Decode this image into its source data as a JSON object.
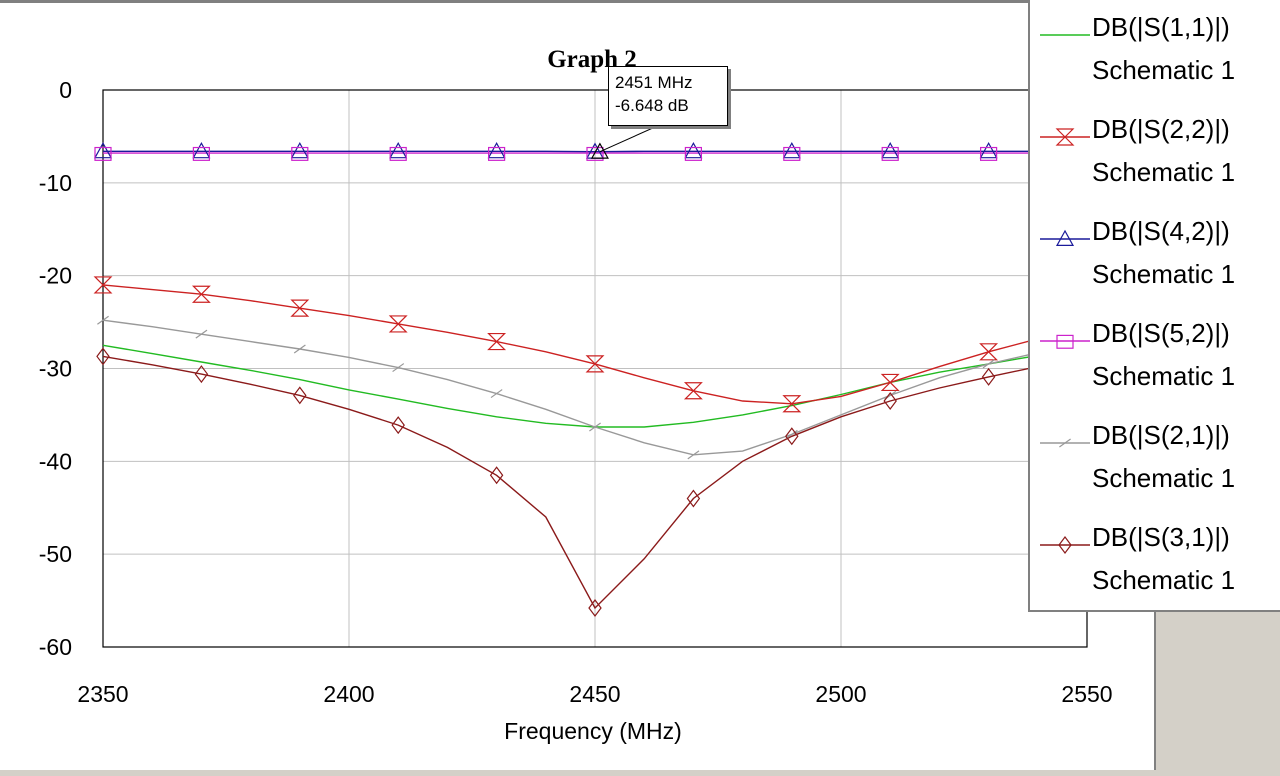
{
  "chart_data": {
    "type": "line",
    "title": "Graph 2",
    "xlabel": "Frequency (MHz)",
    "ylabel": "",
    "xlim": [
      2350,
      2550
    ],
    "ylim": [
      -60,
      0
    ],
    "x_ticks": [
      "2350",
      "2400",
      "2450",
      "2500",
      "2550"
    ],
    "y_ticks": [
      "0",
      "-10",
      "-20",
      "-30",
      "-40",
      "-50",
      "-60"
    ],
    "grid": true,
    "legend_position": "right",
    "x": [
      2350,
      2360,
      2370,
      2380,
      2390,
      2400,
      2410,
      2420,
      2430,
      2440,
      2450,
      2460,
      2470,
      2480,
      2490,
      2500,
      2510,
      2520,
      2530,
      2540,
      2550
    ],
    "series": [
      {
        "name": "DB(|S(1,1)|)",
        "name2": "Schematic 1",
        "color": "#22bb22",
        "marker": "none",
        "values": [
          -27.5,
          -28.4,
          -29.3,
          -30.2,
          -31.2,
          -32.3,
          -33.3,
          -34.3,
          -35.2,
          -35.9,
          -36.3,
          -36.3,
          -35.8,
          -35.0,
          -34.0,
          -32.8,
          -31.5,
          -30.4,
          -29.5,
          -28.6,
          -27.9
        ]
      },
      {
        "name": "DB(|S(2,2)|)",
        "name2": "Schematic 1",
        "color": "#cc2222",
        "marker": "hourglass",
        "values": [
          -21.0,
          -21.5,
          -22.0,
          -22.7,
          -23.5,
          -24.3,
          -25.2,
          -26.1,
          -27.1,
          -28.2,
          -29.5,
          -31.0,
          -32.4,
          -33.5,
          -33.8,
          -33.0,
          -31.5,
          -29.8,
          -28.2,
          -26.8,
          -25.8
        ]
      },
      {
        "name": "DB(|S(4,2)|)",
        "name2": "Schematic 1",
        "color": "#1a1a9a",
        "marker": "triangle",
        "values": [
          -6.6,
          -6.6,
          -6.6,
          -6.6,
          -6.6,
          -6.6,
          -6.6,
          -6.6,
          -6.6,
          -6.6,
          -6.648,
          -6.6,
          -6.6,
          -6.6,
          -6.6,
          -6.6,
          -6.6,
          -6.6,
          -6.6,
          -6.6,
          -6.6
        ]
      },
      {
        "name": "DB(|S(5,2)|)",
        "name2": "Schematic 1",
        "color": "#cc22cc",
        "marker": "square",
        "values": [
          -6.8,
          -6.8,
          -6.8,
          -6.8,
          -6.8,
          -6.8,
          -6.8,
          -6.8,
          -6.8,
          -6.8,
          -6.8,
          -6.8,
          -6.8,
          -6.8,
          -6.8,
          -6.8,
          -6.8,
          -6.8,
          -6.8,
          -6.8,
          -6.8
        ]
      },
      {
        "name": "DB(|S(2,1)|)",
        "name2": "Schematic 1",
        "color": "#999999",
        "marker": "slash",
        "values": [
          -24.8,
          -25.5,
          -26.3,
          -27.1,
          -27.9,
          -28.8,
          -29.9,
          -31.2,
          -32.7,
          -34.4,
          -36.3,
          -38.0,
          -39.3,
          -38.9,
          -37.1,
          -35.0,
          -32.9,
          -31.0,
          -29.5,
          -28.3,
          -27.4
        ]
      },
      {
        "name": "DB(|S(3,1)|)",
        "name2": "Schematic 1",
        "color": "#8b1a1a",
        "marker": "diamond",
        "values": [
          -28.7,
          -29.6,
          -30.6,
          -31.7,
          -32.9,
          -34.4,
          -36.1,
          -38.5,
          -41.5,
          -46.0,
          -55.8,
          -50.5,
          -44.0,
          -40.0,
          -37.3,
          -35.2,
          -33.5,
          -32.1,
          -30.9,
          -29.8,
          -29.0
        ]
      }
    ],
    "marker_readout": {
      "freq": "2451 MHz",
      "value": "-6.648 dB",
      "x": 2451,
      "y": -6.648
    }
  }
}
